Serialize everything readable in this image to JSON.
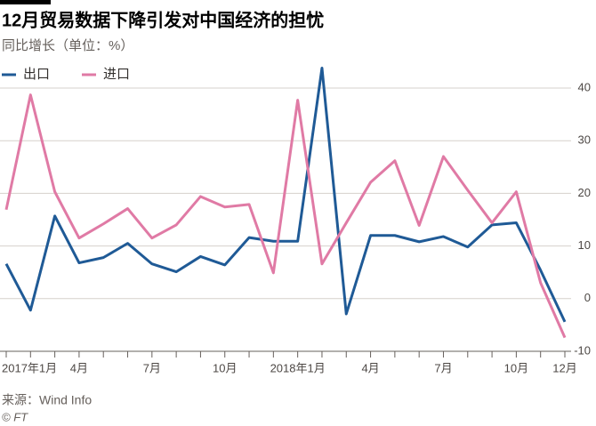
{
  "chart_data": {
    "type": "line",
    "title": "12月贸易数据下降引发对中国经济的担忧",
    "subtitle": "同比增长（单位：%）",
    "source": "来源：Wind Info",
    "credit": "© FT",
    "categories": [
      "2017年1月",
      null,
      null,
      "4月",
      null,
      null,
      "7月",
      null,
      null,
      "10月",
      null,
      null,
      "2018年1月",
      null,
      null,
      "4月",
      null,
      null,
      "7月",
      null,
      null,
      "10月",
      null,
      "12月"
    ],
    "series": [
      {
        "name": "出口",
        "color": "#1f5a96",
        "values": [
          6.6,
          -2.2,
          15.7,
          6.8,
          7.8,
          10.5,
          6.6,
          5.1,
          8.0,
          6.4,
          11.6,
          10.9,
          10.9,
          43.8,
          -2.9,
          12.0,
          12.0,
          10.8,
          11.8,
          9.8,
          14.0,
          14.4,
          5.4,
          -4.4
        ]
      },
      {
        "name": "进口",
        "color": "#e07aa5",
        "values": [
          16.9,
          38.7,
          20.3,
          11.5,
          14.2,
          17.1,
          11.5,
          14.0,
          19.4,
          17.4,
          17.9,
          4.9,
          37.7,
          6.6,
          14.4,
          22.1,
          26.2,
          13.9,
          27.0,
          20.6,
          14.4,
          20.3,
          3.0,
          -7.4
        ]
      }
    ],
    "ylim": [
      -10,
      40
    ],
    "yticks": [
      -10,
      0,
      10,
      20,
      30,
      40
    ],
    "grid": true,
    "y_axis_side": "right"
  }
}
